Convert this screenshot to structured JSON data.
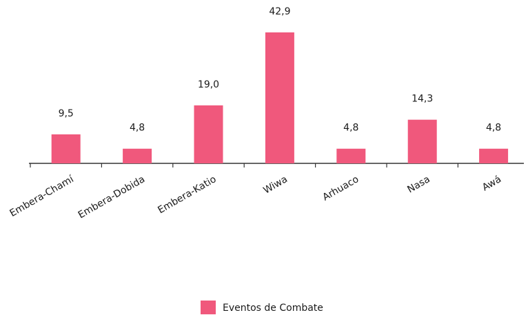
{
  "chart_data": {
    "type": "bar",
    "categories": [
      "Embera-Chamí",
      "Embera-Dobida",
      "Embera-Katio",
      "Wiwa",
      "Arhuaco",
      "Nasa",
      "Awá"
    ],
    "series": [
      {
        "name": "Eventos de Combate",
        "color": "#f0587c",
        "values": [
          9.5,
          4.8,
          19.0,
          42.9,
          4.8,
          14.3,
          4.8
        ],
        "value_labels": [
          "9,5",
          "4,8",
          "19,0",
          "42,9",
          "4,8",
          "14,3",
          "4,8"
        ]
      }
    ],
    "legend": "bottom"
  }
}
